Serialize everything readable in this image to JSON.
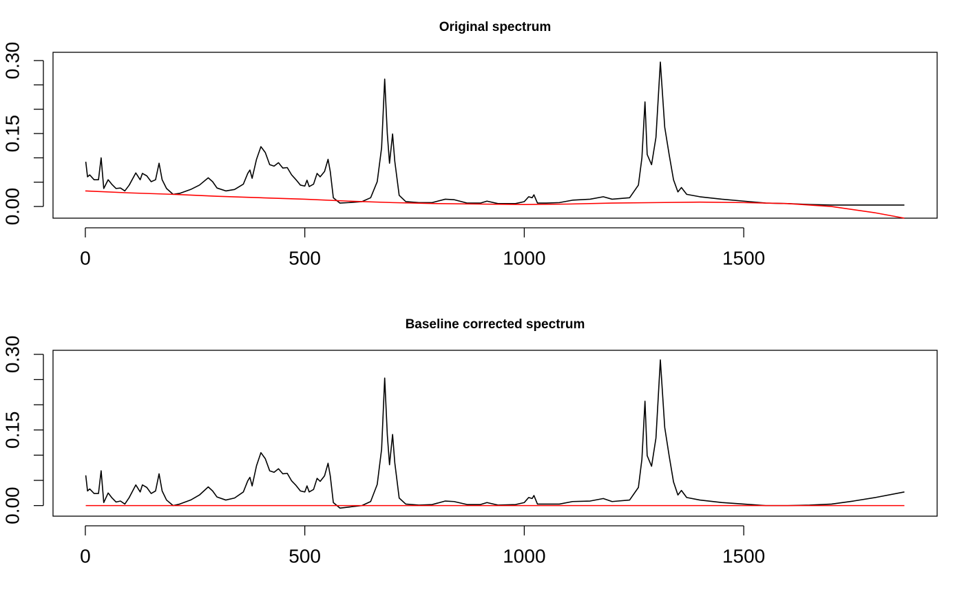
{
  "chart_data": [
    {
      "type": "line",
      "title": "Original spectrum",
      "xlim": [
        -73.6,
        1940.6
      ],
      "ylim": [
        -0.024,
        0.317
      ],
      "xticks": [
        0,
        500,
        1000,
        1500
      ],
      "yticks": [
        {
          "value": 0,
          "label": "0.00"
        },
        {
          "value": 0.05,
          "label": null
        },
        {
          "value": 0.1,
          "label": null
        },
        {
          "value": 0.15,
          "label": "0.15"
        },
        {
          "value": 0.2,
          "label": null
        },
        {
          "value": 0.25,
          "label": null
        },
        {
          "value": 0.3,
          "label": "0.30"
        }
      ],
      "series": [
        {
          "color": "#000000",
          "x": [
            1,
            5,
            10,
            20,
            30,
            36,
            42,
            52,
            60,
            70,
            80,
            90,
            100,
            115,
            125,
            130,
            140,
            150,
            160,
            168,
            175,
            185,
            200,
            215,
            240,
            260,
            280,
            290,
            300,
            320,
            340,
            360,
            370,
            375,
            380,
            390,
            400,
            410,
            420,
            430,
            440,
            450,
            460,
            470,
            480,
            490,
            500,
            505,
            510,
            520,
            528,
            535,
            545,
            553,
            558,
            565,
            580,
            600,
            630,
            650,
            665,
            675,
            682,
            688,
            693,
            700,
            705,
            715,
            730,
            760,
            790,
            820,
            840,
            870,
            900,
            915,
            940,
            980,
            1000,
            1010,
            1018,
            1022,
            1030,
            1050,
            1080,
            1110,
            1150,
            1180,
            1200,
            1240,
            1260,
            1268,
            1275,
            1280,
            1290,
            1300,
            1310,
            1320,
            1330,
            1340,
            1350,
            1358,
            1370,
            1400,
            1450,
            1500,
            1550,
            1600,
            1650,
            1700,
            1750,
            1800,
            1866
          ],
          "values": [
            0.092,
            0.061,
            0.065,
            0.055,
            0.055,
            0.1,
            0.037,
            0.055,
            0.046,
            0.037,
            0.038,
            0.032,
            0.044,
            0.069,
            0.055,
            0.068,
            0.063,
            0.051,
            0.055,
            0.089,
            0.055,
            0.037,
            0.025,
            0.027,
            0.035,
            0.044,
            0.059,
            0.051,
            0.038,
            0.032,
            0.035,
            0.046,
            0.068,
            0.075,
            0.058,
            0.097,
            0.123,
            0.111,
            0.086,
            0.083,
            0.09,
            0.079,
            0.08,
            0.065,
            0.055,
            0.044,
            0.042,
            0.054,
            0.041,
            0.046,
            0.068,
            0.061,
            0.072,
            0.097,
            0.072,
            0.018,
            0.007,
            0.008,
            0.01,
            0.018,
            0.051,
            0.121,
            0.262,
            0.149,
            0.089,
            0.149,
            0.093,
            0.023,
            0.01,
            0.008,
            0.008,
            0.015,
            0.014,
            0.007,
            0.007,
            0.011,
            0.006,
            0.006,
            0.01,
            0.02,
            0.018,
            0.024,
            0.007,
            0.007,
            0.008,
            0.013,
            0.015,
            0.02,
            0.015,
            0.018,
            0.044,
            0.1,
            0.215,
            0.107,
            0.086,
            0.142,
            0.297,
            0.163,
            0.107,
            0.055,
            0.03,
            0.039,
            0.025,
            0.02,
            0.015,
            0.011,
            0.007,
            0.006,
            0.004,
            0.003,
            0.003,
            0.003,
            0.003
          ]
        },
        {
          "color": "#ff0000",
          "x": [
            0,
            100,
            200,
            300,
            400,
            500,
            600,
            700,
            800,
            900,
            1000,
            1100,
            1200,
            1300,
            1400,
            1500,
            1600,
            1700,
            1800,
            1866
          ],
          "values": [
            0.032,
            0.028,
            0.025,
            0.021,
            0.018,
            0.015,
            0.011,
            0.008,
            0.006,
            0.005,
            0.004,
            0.005,
            0.007,
            0.008,
            0.009,
            0.008,
            0.006,
            0.0,
            -0.013,
            -0.024
          ]
        }
      ]
    },
    {
      "type": "line",
      "title": "Baseline corrected spectrum",
      "xlim": [
        -73.6,
        1940.6
      ],
      "ylim": [
        -0.021,
        0.308
      ],
      "xticks": [
        0,
        500,
        1000,
        1500
      ],
      "yticks": [
        {
          "value": 0,
          "label": "0.00"
        },
        {
          "value": 0.05,
          "label": null
        },
        {
          "value": 0.1,
          "label": null
        },
        {
          "value": 0.15,
          "label": "0.15"
        },
        {
          "value": 0.2,
          "label": null
        },
        {
          "value": 0.25,
          "label": null
        },
        {
          "value": 0.3,
          "label": "0.30"
        }
      ],
      "series": [
        {
          "color": "#000000",
          "x": [
            1,
            5,
            10,
            20,
            30,
            36,
            42,
            52,
            60,
            70,
            80,
            90,
            100,
            115,
            125,
            130,
            140,
            150,
            160,
            168,
            175,
            185,
            200,
            215,
            240,
            260,
            280,
            290,
            300,
            320,
            340,
            360,
            370,
            375,
            380,
            390,
            400,
            410,
            420,
            430,
            440,
            450,
            460,
            470,
            480,
            490,
            500,
            505,
            510,
            520,
            528,
            535,
            545,
            553,
            558,
            565,
            580,
            600,
            630,
            650,
            665,
            675,
            682,
            688,
            693,
            700,
            705,
            715,
            730,
            760,
            790,
            820,
            840,
            870,
            900,
            915,
            940,
            980,
            1000,
            1010,
            1018,
            1022,
            1030,
            1050,
            1080,
            1110,
            1150,
            1180,
            1200,
            1240,
            1260,
            1268,
            1275,
            1280,
            1290,
            1300,
            1310,
            1320,
            1330,
            1340,
            1350,
            1358,
            1370,
            1400,
            1450,
            1500,
            1550,
            1600,
            1650,
            1700,
            1750,
            1800,
            1866
          ],
          "values": [
            0.06,
            0.029,
            0.033,
            0.024,
            0.024,
            0.069,
            0.006,
            0.025,
            0.016,
            0.007,
            0.009,
            0.003,
            0.016,
            0.041,
            0.027,
            0.041,
            0.036,
            0.024,
            0.029,
            0.063,
            0.029,
            0.011,
            0.0,
            0.003,
            0.011,
            0.021,
            0.037,
            0.029,
            0.017,
            0.011,
            0.015,
            0.027,
            0.049,
            0.056,
            0.039,
            0.079,
            0.105,
            0.093,
            0.069,
            0.066,
            0.073,
            0.063,
            0.064,
            0.049,
            0.04,
            0.029,
            0.027,
            0.039,
            0.027,
            0.032,
            0.054,
            0.048,
            0.059,
            0.084,
            0.059,
            0.006,
            -0.005,
            -0.003,
            0.0,
            0.008,
            0.042,
            0.112,
            0.253,
            0.14,
            0.081,
            0.141,
            0.085,
            0.015,
            0.003,
            0.001,
            0.002,
            0.009,
            0.008,
            0.002,
            0.002,
            0.006,
            0.001,
            0.002,
            0.006,
            0.016,
            0.014,
            0.02,
            0.003,
            0.003,
            0.003,
            0.008,
            0.009,
            0.014,
            0.008,
            0.011,
            0.036,
            0.092,
            0.207,
            0.099,
            0.078,
            0.134,
            0.289,
            0.155,
            0.099,
            0.047,
            0.021,
            0.03,
            0.016,
            0.011,
            0.006,
            0.003,
            0.0,
            0.0,
            0.001,
            0.003,
            0.009,
            0.016,
            0.027
          ]
        },
        {
          "color": "#ff0000",
          "x": [
            1,
            1866
          ],
          "values": [
            0,
            0
          ]
        }
      ]
    }
  ]
}
